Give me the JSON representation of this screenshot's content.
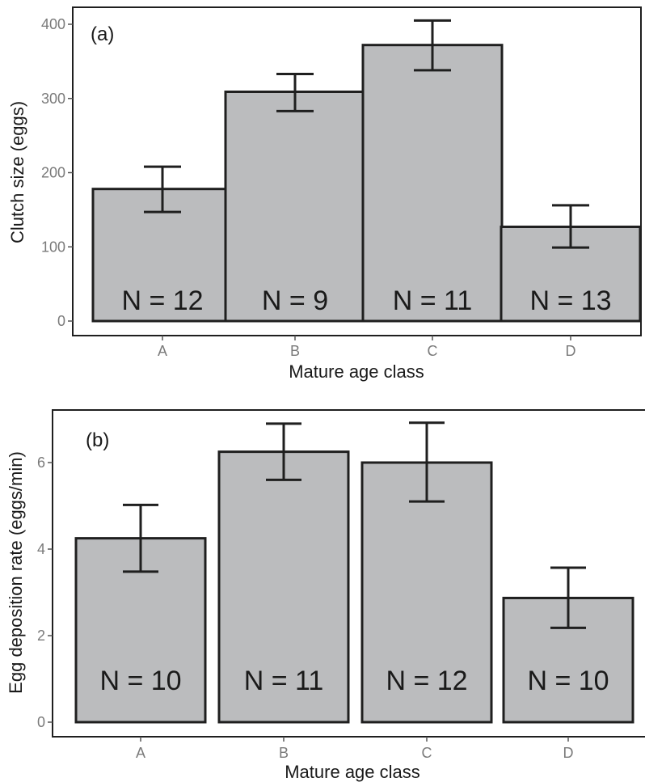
{
  "chart_data": [
    {
      "type": "bar",
      "panel_label": "(a)",
      "categories": [
        "A",
        "B",
        "C",
        "D"
      ],
      "values": [
        178,
        309,
        372,
        127
      ],
      "error_low": [
        147,
        283,
        338,
        99
      ],
      "error_high": [
        208,
        333,
        405,
        156
      ],
      "n_labels": [
        "N = 12",
        "N = 9",
        "N = 11",
        "N = 13"
      ],
      "xlabel": "Mature age class",
      "ylabel": "Clutch size (eggs)",
      "ylim": [
        0,
        400
      ],
      "yticks": [
        0,
        100,
        200,
        300,
        400
      ],
      "grid": false,
      "bar_color": "#bbbcbe",
      "edge_color": "#1f1f1f"
    },
    {
      "type": "bar",
      "panel_label": "(b)",
      "categories": [
        "A",
        "B",
        "C",
        "D"
      ],
      "values": [
        4.25,
        6.25,
        6.0,
        2.87
      ],
      "error_low": [
        3.48,
        5.6,
        5.1,
        2.18
      ],
      "error_high": [
        5.02,
        6.9,
        6.92,
        3.57
      ],
      "n_labels": [
        "N = 10",
        "N = 11",
        "N = 12",
        "N = 10"
      ],
      "xlabel": "Mature age class",
      "ylabel": "Egg deposition rate (eggs/min)",
      "ylim": [
        0,
        6
      ],
      "yticks": [
        0,
        2,
        4,
        6
      ],
      "grid": false,
      "bar_color": "#bbbcbe",
      "edge_color": "#1f1f1f"
    }
  ]
}
